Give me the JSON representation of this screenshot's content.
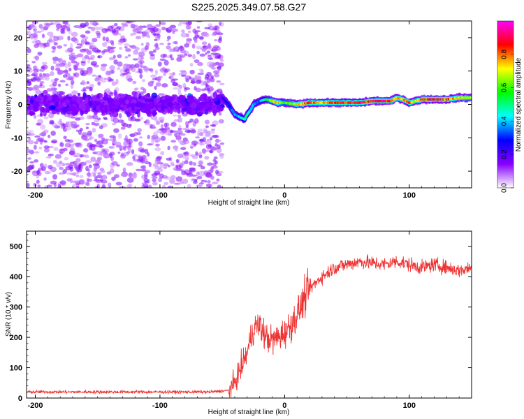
{
  "figure_title": "S225.2025.349.07.58.G27",
  "chart_data": [
    {
      "type": "heatmap",
      "name": "spectrogram",
      "xlabel": "Height of straight line (km)",
      "ylabel": "Frequency (Hz)",
      "xlim": [
        -207,
        150
      ],
      "ylim": [
        -25,
        25
      ],
      "xticks": [
        -200,
        -100,
        0,
        100
      ],
      "xtick_labels": [
        "-200",
        "-100",
        "0",
        "100"
      ],
      "yticks": [
        -20,
        -10,
        0,
        10,
        20
      ],
      "ytick_labels": [
        "-20",
        "-10",
        "0",
        "10",
        "20"
      ],
      "colorbar": {
        "label": "Normalized spectral amplitude",
        "range": [
          0,
          1
        ],
        "ticks": [
          0.0,
          0.2,
          0.4,
          0.6,
          0.8
        ],
        "tick_labels": [
          "0.0",
          "0.2",
          "0.4",
          "0.6",
          "0.8"
        ],
        "colors": [
          "#ffffff",
          "#8800ff",
          "#0000ff",
          "#00ffff",
          "#00ff00",
          "#ffff00",
          "#ff0000",
          "#ff00ff"
        ]
      },
      "noise_region_x": [
        -207,
        -50
      ],
      "signal_trace": {
        "x": [
          -50,
          -45,
          -40,
          -35,
          -32,
          -30,
          -27,
          -25,
          -20,
          -15,
          -10,
          -5,
          0,
          10,
          20,
          30,
          40,
          50,
          60,
          70,
          80,
          85,
          90,
          95,
          100,
          105,
          110,
          120,
          130,
          140,
          150
        ],
        "freq": [
          2,
          0,
          -3,
          -4,
          -4.5,
          -3,
          -1.5,
          0,
          1,
          1.5,
          1,
          0.5,
          0.5,
          0,
          0.5,
          0.5,
          0.5,
          0.5,
          0.5,
          1,
          1,
          1,
          2,
          1.5,
          0.5,
          1,
          1.5,
          1.5,
          1.5,
          2,
          2
        ],
        "amp": [
          0.25,
          0.3,
          0.4,
          0.45,
          0.5,
          0.5,
          0.45,
          0.4,
          0.35,
          0.55,
          0.7,
          0.8,
          0.6,
          0.75,
          0.85,
          0.8,
          0.85,
          0.9,
          0.95,
          0.9,
          0.95,
          0.9,
          0.8,
          0.75,
          0.85,
          0.7,
          0.85,
          0.9,
          0.85,
          0.75,
          0.7
        ]
      }
    },
    {
      "type": "line",
      "name": "snr",
      "xlabel": "Height of straight line (km)",
      "ylabel": "SNR (10 * v/v)",
      "xlim": [
        -207,
        150
      ],
      "ylim": [
        0,
        550
      ],
      "xticks": [
        -200,
        -100,
        0,
        100
      ],
      "xtick_labels": [
        "-200",
        "-100",
        "0",
        "100"
      ],
      "yticks": [
        0,
        100,
        200,
        300,
        400,
        500
      ],
      "ytick_labels": [
        "0",
        "100",
        "200",
        "300",
        "400",
        "500"
      ],
      "line_color": "#ee3333",
      "series": [
        {
          "name": "SNR",
          "x": [
            -207,
            -180,
            -150,
            -120,
            -100,
            -80,
            -60,
            -45,
            -40,
            -35,
            -30,
            -25,
            -20,
            -15,
            -10,
            -5,
            0,
            5,
            10,
            15,
            20,
            30,
            40,
            50,
            60,
            70,
            80,
            90,
            100,
            110,
            120,
            130,
            140,
            150
          ],
          "values": [
            20,
            20,
            20,
            20,
            20,
            20,
            20,
            25,
            50,
            100,
            150,
            230,
            240,
            200,
            190,
            200,
            215,
            240,
            275,
            320,
            360,
            400,
            430,
            440,
            450,
            445,
            440,
            450,
            440,
            430,
            440,
            430,
            420,
            430
          ]
        }
      ]
    }
  ]
}
